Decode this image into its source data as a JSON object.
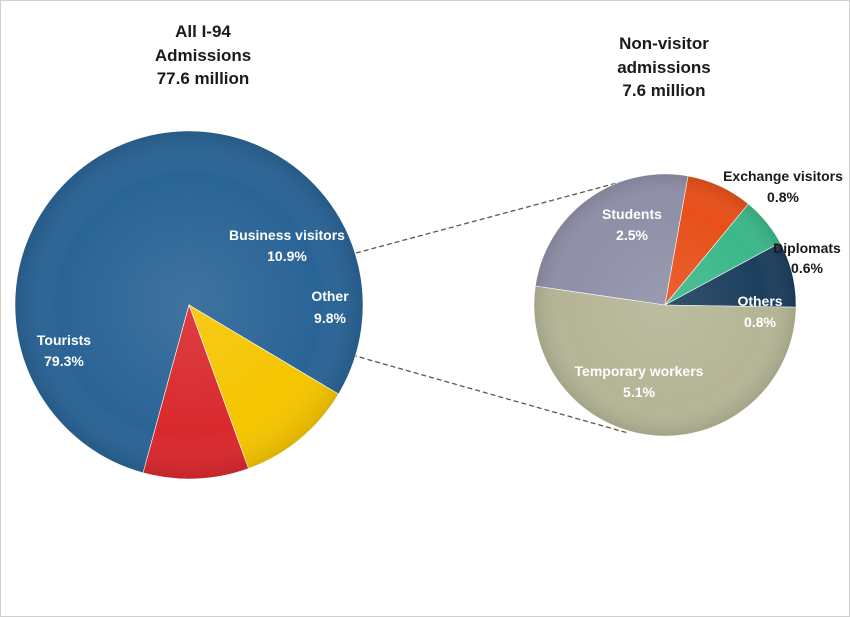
{
  "chart_data": [
    {
      "type": "pie",
      "title": [
        "All I-94",
        "Admissions",
        "77.6 million"
      ],
      "slices": [
        {
          "name": "Tourists",
          "value": 79.3,
          "label": "79.3%",
          "color": "#2a6496",
          "text_color": "#ffffff"
        },
        {
          "name": "Business visitors",
          "value": 10.9,
          "label": "10.9%",
          "color": "#f5c500",
          "text_color": "#ffffff"
        },
        {
          "name": "Other",
          "value": 9.8,
          "label": "9.8%",
          "color": "#d9292e",
          "text_color": "#ffffff"
        }
      ]
    },
    {
      "type": "pie",
      "title": [
        "Non-visitor",
        "admissions",
        "7.6 million"
      ],
      "slices": [
        {
          "name": "Students",
          "value": 2.5,
          "label": "2.5%",
          "color": "#8f8fa8",
          "text_color": "#ffffff"
        },
        {
          "name": "Exchange visitors",
          "value": 0.8,
          "label": "0.8%",
          "color": "#e8501a",
          "text_color": "#1a1a1a"
        },
        {
          "name": "Diplomats",
          "value": 0.6,
          "label": "0.6%",
          "color": "#3cb88a",
          "text_color": "#1a1a1a"
        },
        {
          "name": "Others",
          "value": 0.8,
          "label": "0.8%",
          "color": "#1d3f5e",
          "text_color": "#ffffff"
        },
        {
          "name": "Temporary workers",
          "value": 5.1,
          "label": "5.1%",
          "color": "#b5b596",
          "text_color": "#ffffff"
        }
      ]
    }
  ]
}
